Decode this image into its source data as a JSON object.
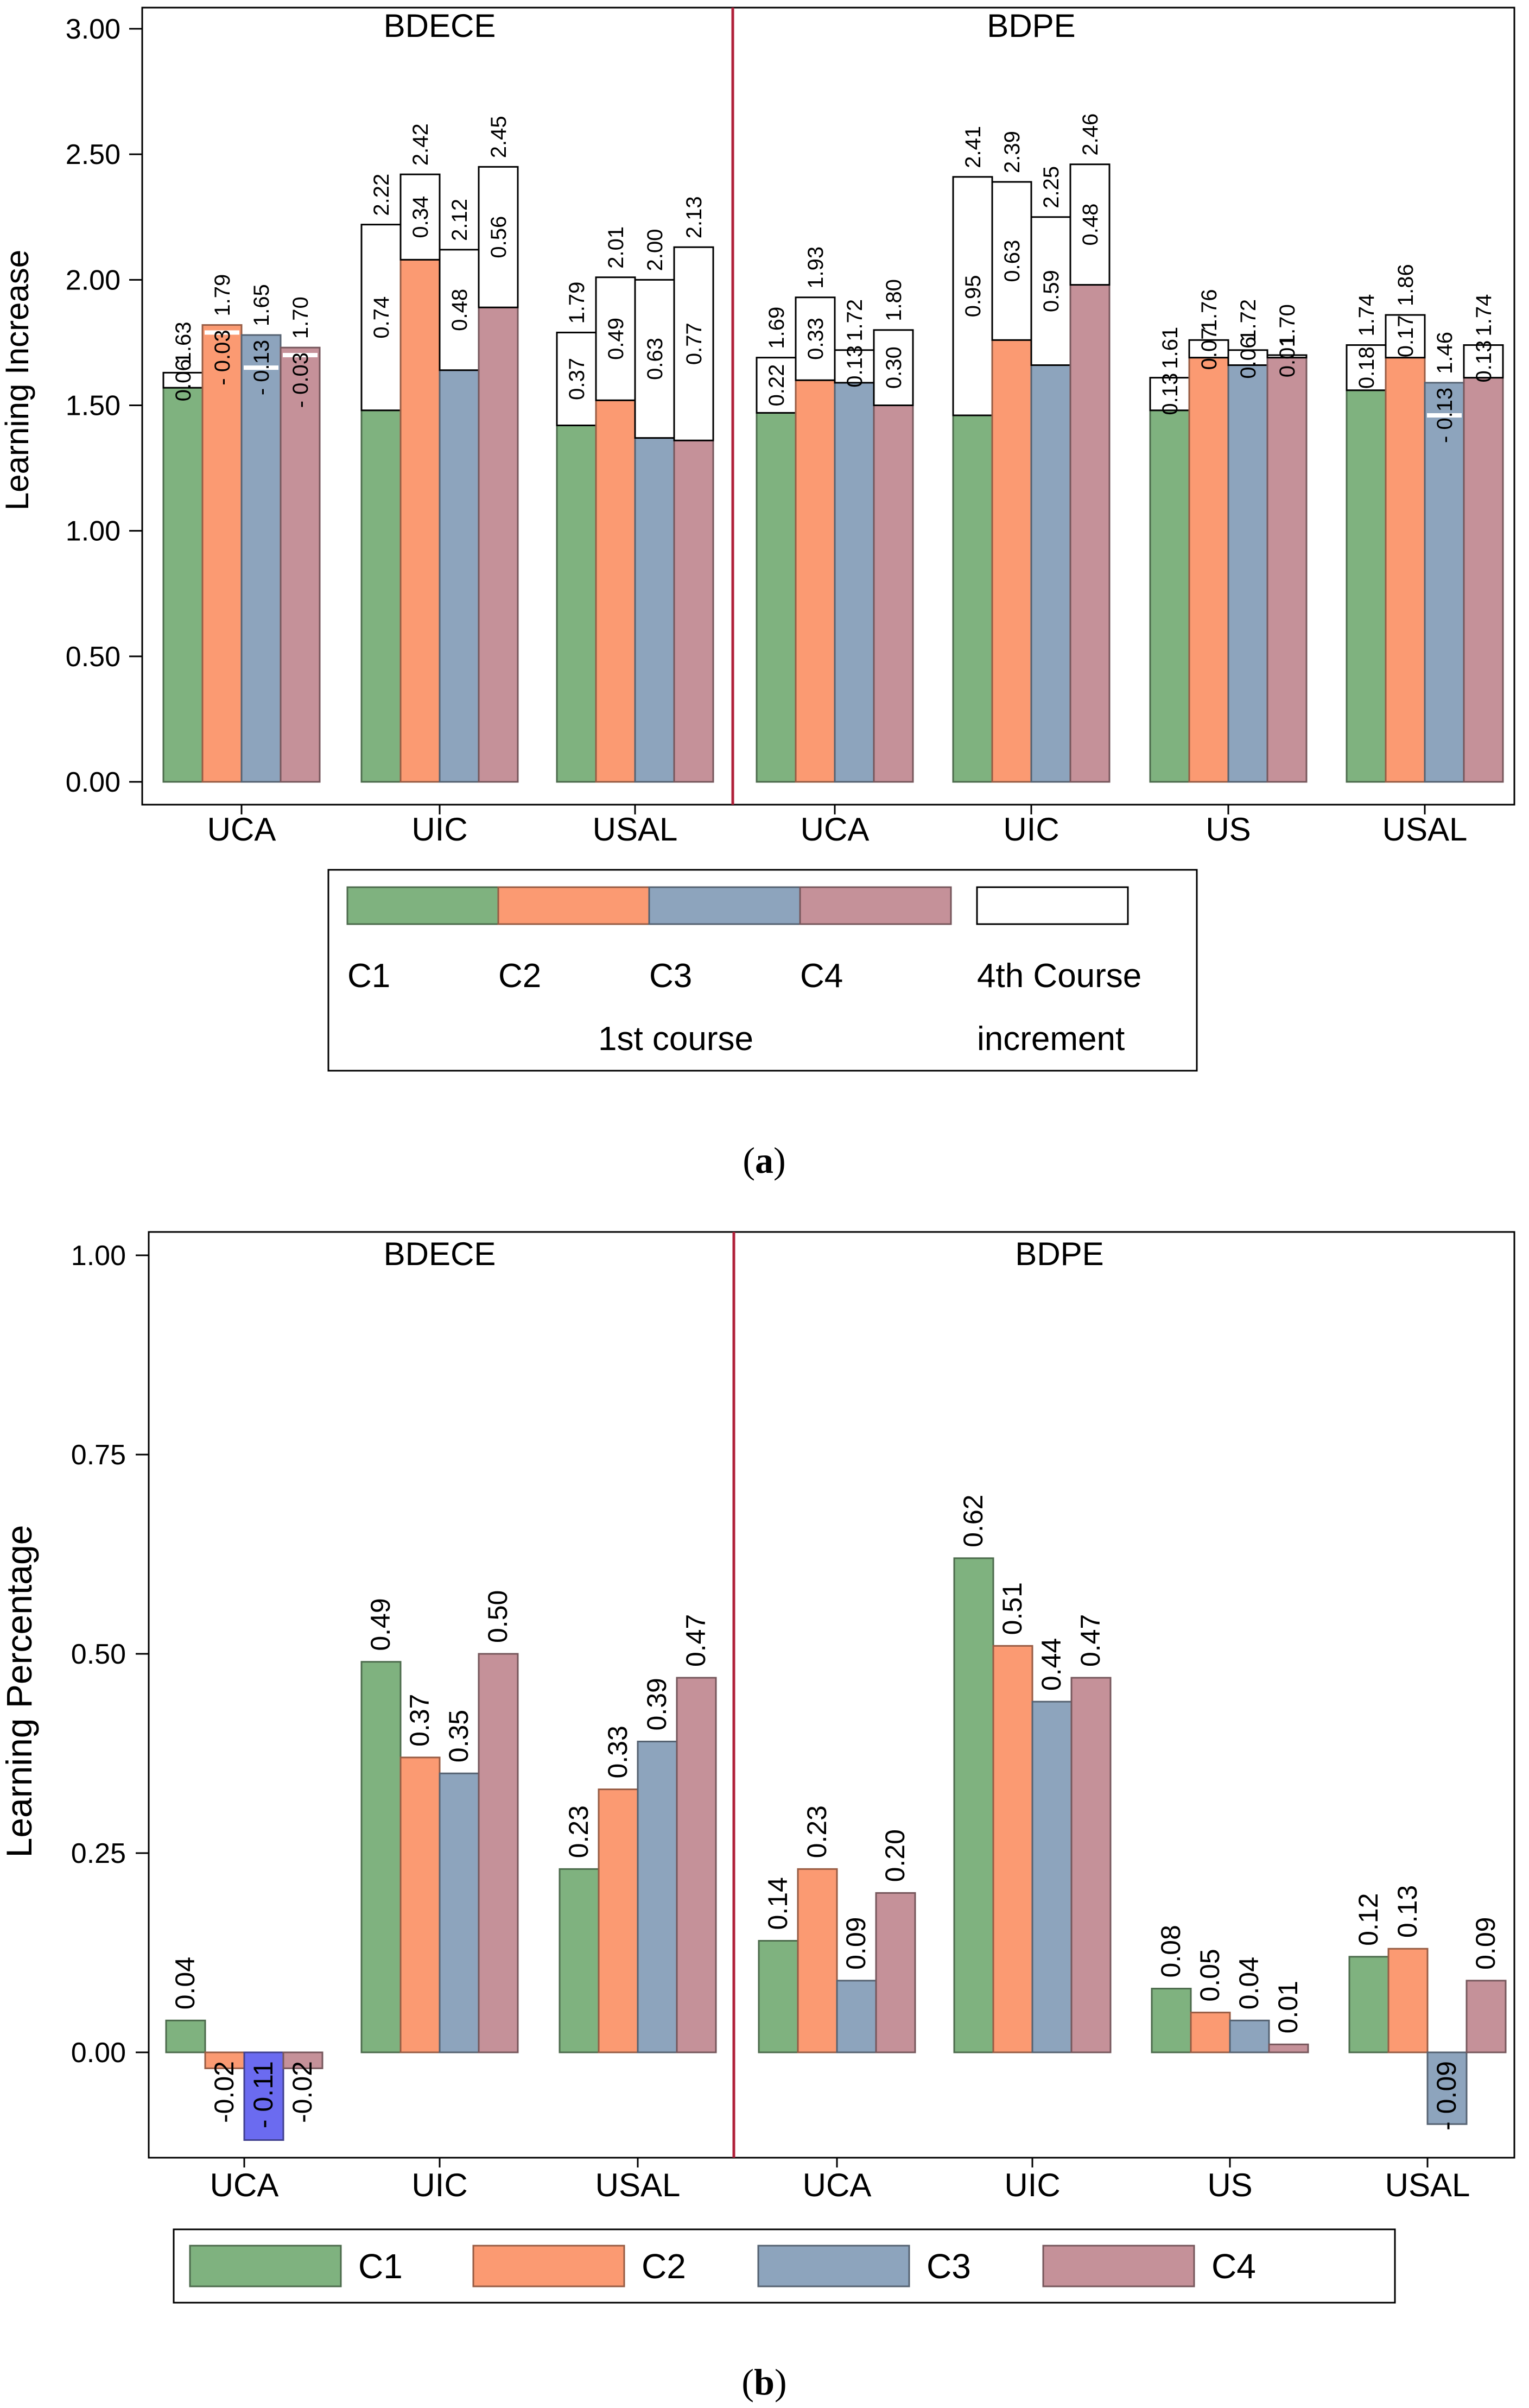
{
  "colors": {
    "C1": "#7fb27f",
    "C2": "#fb9a72",
    "C3": "#8da4bd",
    "C4": "#c59199",
    "C3_negative_alt": "#6b6bf0",
    "divider": "#b0213a"
  },
  "chart_data": [
    {
      "id": "a",
      "type": "bar",
      "subtype": "stacked",
      "caption_letter": "a",
      "ylabel": "Learning Increase",
      "ylim": [
        0,
        3.0
      ],
      "yticks": [
        "0.00",
        "0.50",
        "1.00",
        "1.50",
        "2.00",
        "2.50",
        "3.00"
      ],
      "panels": [
        {
          "title": "BDECE",
          "groups": [
            {
              "name": "UCA",
              "bars": [
                {
                  "series": "C1",
                  "base": 1.57,
                  "inc": 0.06,
                  "inc_label": "0.06",
                  "total_label": "1.63"
                },
                {
                  "series": "C2",
                  "base": 1.82,
                  "inc": -0.03,
                  "inc_label": "- 0.03",
                  "total_label": "1.79"
                },
                {
                  "series": "C3",
                  "base": 1.78,
                  "inc": -0.13,
                  "inc_label": "- 0.13",
                  "total_label": "1.65"
                },
                {
                  "series": "C4",
                  "base": 1.73,
                  "inc": -0.03,
                  "inc_label": "- 0.03",
                  "total_label": "1.70"
                }
              ]
            },
            {
              "name": "UIC",
              "bars": [
                {
                  "series": "C1",
                  "base": 1.48,
                  "inc": 0.74,
                  "inc_label": "0.74",
                  "total_label": "2.22"
                },
                {
                  "series": "C2",
                  "base": 2.08,
                  "inc": 0.34,
                  "inc_label": "0.34",
                  "total_label": "2.42"
                },
                {
                  "series": "C3",
                  "base": 1.64,
                  "inc": 0.48,
                  "inc_label": "0.48",
                  "total_label": "2.12"
                },
                {
                  "series": "C4",
                  "base": 1.89,
                  "inc": 0.56,
                  "inc_label": "0.56",
                  "total_label": "2.45"
                }
              ]
            },
            {
              "name": "USAL",
              "bars": [
                {
                  "series": "C1",
                  "base": 1.42,
                  "inc": 0.37,
                  "inc_label": "0.37",
                  "total_label": "1.79"
                },
                {
                  "series": "C2",
                  "base": 1.52,
                  "inc": 0.49,
                  "inc_label": "0.49",
                  "total_label": "2.01"
                },
                {
                  "series": "C3",
                  "base": 1.37,
                  "inc": 0.63,
                  "inc_label": "0.63",
                  "total_label": "2.00"
                },
                {
                  "series": "C4",
                  "base": 1.36,
                  "inc": 0.77,
                  "inc_label": "0.77",
                  "total_label": "2.13"
                }
              ]
            }
          ]
        },
        {
          "title": "BDPE",
          "groups": [
            {
              "name": "UCA",
              "bars": [
                {
                  "series": "C1",
                  "base": 1.47,
                  "inc": 0.22,
                  "inc_label": "0.22",
                  "total_label": "1.69"
                },
                {
                  "series": "C2",
                  "base": 1.6,
                  "inc": 0.33,
                  "inc_label": "0.33",
                  "total_label": "1.93"
                },
                {
                  "series": "C3",
                  "base": 1.59,
                  "inc": 0.13,
                  "inc_label": "0.13",
                  "total_label": "1.72"
                },
                {
                  "series": "C4",
                  "base": 1.5,
                  "inc": 0.3,
                  "inc_label": "0.30",
                  "total_label": "1.80"
                }
              ]
            },
            {
              "name": "UIC",
              "bars": [
                {
                  "series": "C1",
                  "base": 1.46,
                  "inc": 0.95,
                  "inc_label": "0.95",
                  "total_label": "2.41"
                },
                {
                  "series": "C2",
                  "base": 1.76,
                  "inc": 0.63,
                  "inc_label": "0.63",
                  "total_label": "2.39"
                },
                {
                  "series": "C3",
                  "base": 1.66,
                  "inc": 0.59,
                  "inc_label": "0.59",
                  "total_label": "2.25"
                },
                {
                  "series": "C4",
                  "base": 1.98,
                  "inc": 0.48,
                  "inc_label": "0.48",
                  "total_label": "2.46"
                }
              ]
            },
            {
              "name": "US",
              "bars": [
                {
                  "series": "C1",
                  "base": 1.48,
                  "inc": 0.13,
                  "inc_label": "0.13",
                  "total_label": "1.61"
                },
                {
                  "series": "C2",
                  "base": 1.69,
                  "inc": 0.07,
                  "inc_label": "0.07",
                  "total_label": "1.76"
                },
                {
                  "series": "C3",
                  "base": 1.66,
                  "inc": 0.06,
                  "inc_label": "0.06",
                  "total_label": "1.72"
                },
                {
                  "series": "C4",
                  "base": 1.69,
                  "inc": 0.01,
                  "inc_label": "0.01",
                  "total_label": "1.70"
                }
              ]
            },
            {
              "name": "USAL",
              "bars": [
                {
                  "series": "C1",
                  "base": 1.56,
                  "inc": 0.18,
                  "inc_label": "0.18",
                  "total_label": "1.74"
                },
                {
                  "series": "C2",
                  "base": 1.69,
                  "inc": 0.17,
                  "inc_label": "0.17",
                  "total_label": "1.86"
                },
                {
                  "series": "C3",
                  "base": 1.59,
                  "inc": -0.13,
                  "inc_label": "- 0.13",
                  "total_label": "1.46"
                },
                {
                  "series": "C4",
                  "base": 1.61,
                  "inc": 0.13,
                  "inc_label": "0.13",
                  "total_label": "1.74"
                }
              ]
            }
          ]
        }
      ],
      "legend": {
        "series_labels": [
          "C1",
          "C2",
          "C3",
          "C4"
        ],
        "series_caption": "1st course",
        "increment_label": "4th Course",
        "increment_caption": "increment"
      }
    },
    {
      "id": "b",
      "type": "bar",
      "caption_letter": "b",
      "ylabel": "Learning Percentage",
      "ylim": [
        -0.15,
        1.0
      ],
      "yticks": [
        "0.00",
        "0.25",
        "0.50",
        "0.75",
        "1.00"
      ],
      "panels": [
        {
          "title": "BDECE",
          "groups": [
            {
              "name": "UCA",
              "values": [
                0.04,
                -0.02,
                -0.11,
                -0.02
              ],
              "labels": [
                "0.04",
                "-0.02",
                "- 0.11",
                "-0.02"
              ]
            },
            {
              "name": "UIC",
              "values": [
                0.49,
                0.37,
                0.35,
                0.5
              ],
              "labels": [
                "0.49",
                "0.37",
                "0.35",
                "0.50"
              ]
            },
            {
              "name": "USAL",
              "values": [
                0.23,
                0.33,
                0.39,
                0.47
              ],
              "labels": [
                "0.23",
                "0.33",
                "0.39",
                "0.47"
              ]
            }
          ]
        },
        {
          "title": "BDPE",
          "groups": [
            {
              "name": "UCA",
              "values": [
                0.14,
                0.23,
                0.09,
                0.2
              ],
              "labels": [
                "0.14",
                "0.23",
                "0.09",
                "0.20"
              ]
            },
            {
              "name": "UIC",
              "values": [
                0.62,
                0.51,
                0.44,
                0.47
              ],
              "labels": [
                "0.62",
                "0.51",
                "0.44",
                "0.47"
              ]
            },
            {
              "name": "US",
              "values": [
                0.08,
                0.05,
                0.04,
                0.01
              ],
              "labels": [
                "0.08",
                "0.05",
                "0.04",
                "0.01"
              ]
            },
            {
              "name": "USAL",
              "values": [
                0.12,
                0.13,
                -0.09,
                0.09
              ],
              "labels": [
                "0.12",
                "0.13",
                "- 0.09",
                "0.09"
              ]
            }
          ]
        }
      ],
      "legend": {
        "series_labels": [
          "C1",
          "C2",
          "C3",
          "C4"
        ]
      }
    }
  ]
}
